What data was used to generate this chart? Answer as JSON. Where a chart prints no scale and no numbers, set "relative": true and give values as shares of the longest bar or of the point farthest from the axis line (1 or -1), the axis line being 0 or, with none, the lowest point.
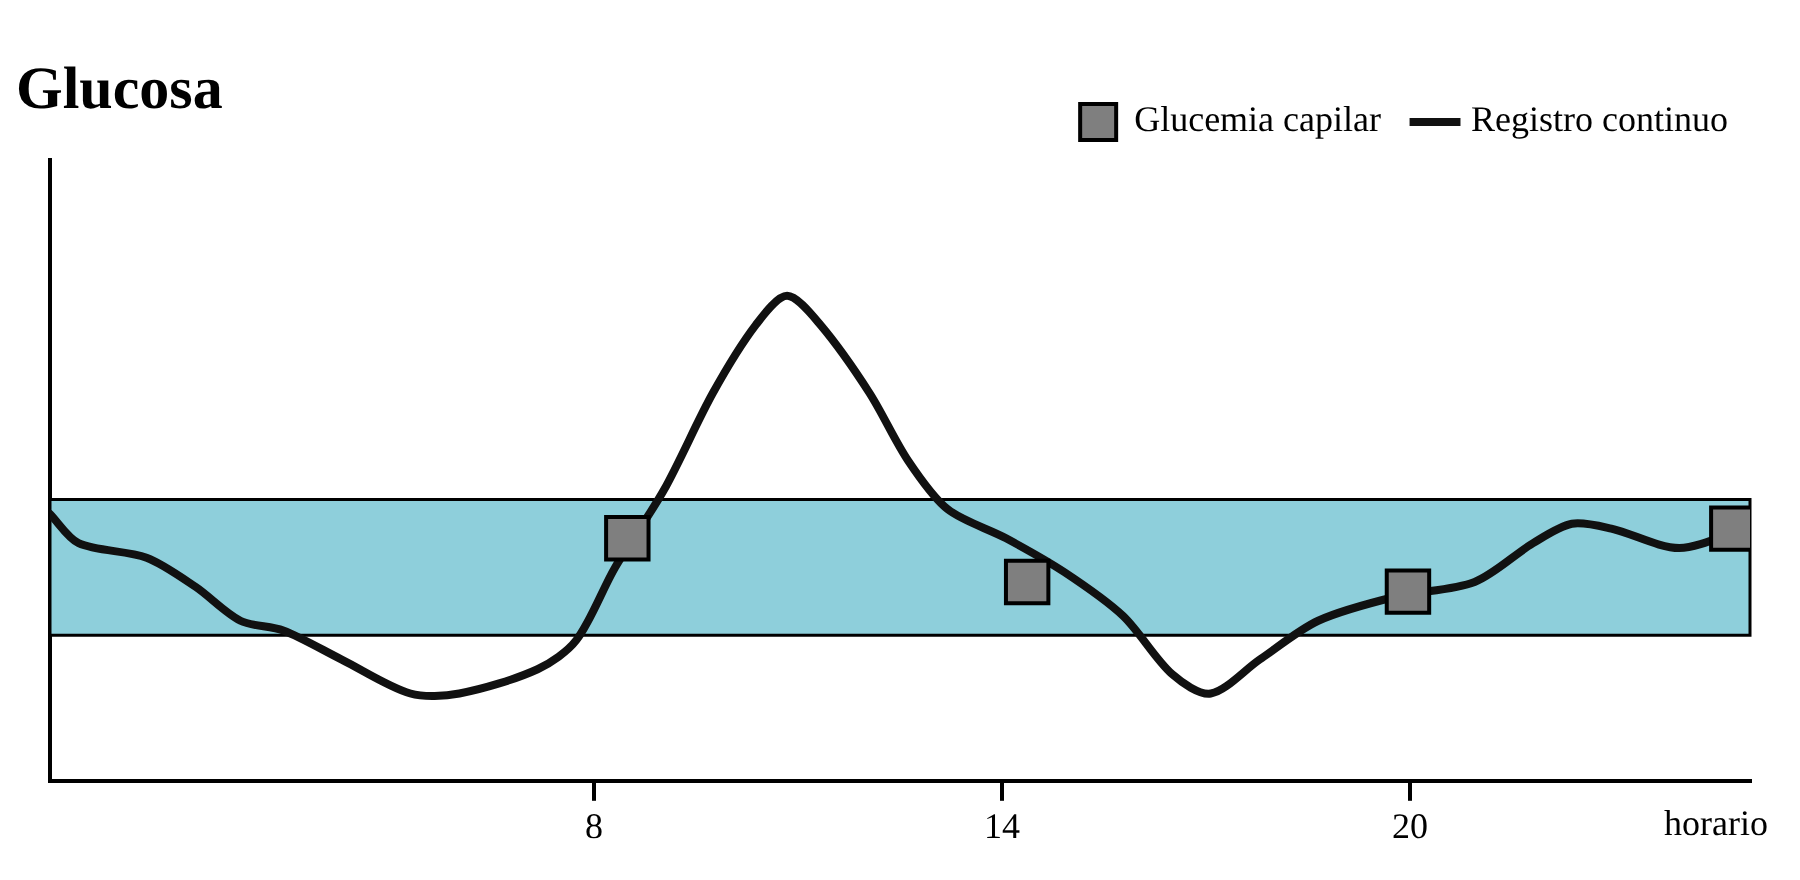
{
  "chart_data": {
    "type": "line",
    "title": "Glucosa",
    "xlabel": "horario",
    "relative": true,
    "xlim": [
      0,
      25
    ],
    "xticks": [
      8,
      14,
      20
    ],
    "grid": false,
    "legend": "top right",
    "bands": [
      {
        "axis": "y",
        "from": 0.3,
        "to": 0.58,
        "color": "#8ecfdb"
      }
    ],
    "series": [
      {
        "name": "Glucemia capilar",
        "type": "scatter",
        "color": "#7f7f7f",
        "marker": "square",
        "x": [
          8.49,
          14.37,
          19.97,
          24.74
        ],
        "values": [
          0.5,
          0.41,
          0.39,
          0.52
        ]
      },
      {
        "name": "Registro continuo",
        "color": "#111111",
        "marker": "none",
        "line_style": "solid",
        "x": [
          0,
          0.42,
          1.42,
          2.14,
          2.8,
          3.43,
          4.29,
          5.3,
          6.02,
          7.17,
          7.74,
          8.31,
          9.03,
          9.75,
          10.38,
          10.84,
          11.33,
          12.05,
          12.62,
          13.2,
          14.06,
          14.92,
          15.78,
          16.5,
          17.07,
          17.79,
          18.65,
          19.8,
          20.95,
          21.81,
          22.38,
          22.96,
          23.96,
          24.9
        ],
        "values": [
          0.55,
          0.49,
          0.46,
          0.4,
          0.33,
          0.31,
          0.25,
          0.18,
          0.18,
          0.23,
          0.29,
          0.44,
          0.6,
          0.8,
          0.94,
          1,
          0.94,
          0.8,
          0.66,
          0.56,
          0.5,
          0.43,
          0.34,
          0.22,
          0.18,
          0.25,
          0.33,
          0.38,
          0.41,
          0.49,
          0.53,
          0.52,
          0.48,
          0.52
        ]
      }
    ]
  }
}
